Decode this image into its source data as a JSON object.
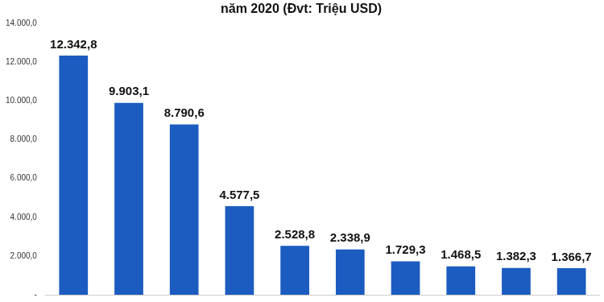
{
  "chart_data": {
    "type": "bar",
    "title": "năm 2020 (Đvt: Triệu USD)",
    "categories": [
      null,
      null,
      null,
      null,
      null,
      null,
      null,
      null,
      null,
      null
    ],
    "values": [
      12342.8,
      9903.1,
      8790.6,
      4577.5,
      2528.8,
      2338.9,
      1729.3,
      1468.5,
      1382.3,
      1366.7
    ],
    "value_labels": [
      "12.342,8",
      "9.903,1",
      "8.790,6",
      "4.577,5",
      "2.528,8",
      "2.338,9",
      "1.729,3",
      "1.468,5",
      "1.382,3",
      "1.366,7"
    ],
    "color": "#1c5cc0",
    "ylim": [
      0,
      14000
    ],
    "yticks": [
      {
        "value": 0,
        "label": "-"
      },
      {
        "value": 2000,
        "label": "2.000,0"
      },
      {
        "value": 4000,
        "label": "4.000,0"
      },
      {
        "value": 6000,
        "label": "6.000,0"
      },
      {
        "value": 8000,
        "label": "8.000,0"
      },
      {
        "value": 10000,
        "label": "10.000,0"
      },
      {
        "value": 12000,
        "label": "12.000,0"
      },
      {
        "value": 14000,
        "label": "14.000,0"
      }
    ],
    "grid": false,
    "data_labels": true,
    "tick_labels": "y"
  }
}
